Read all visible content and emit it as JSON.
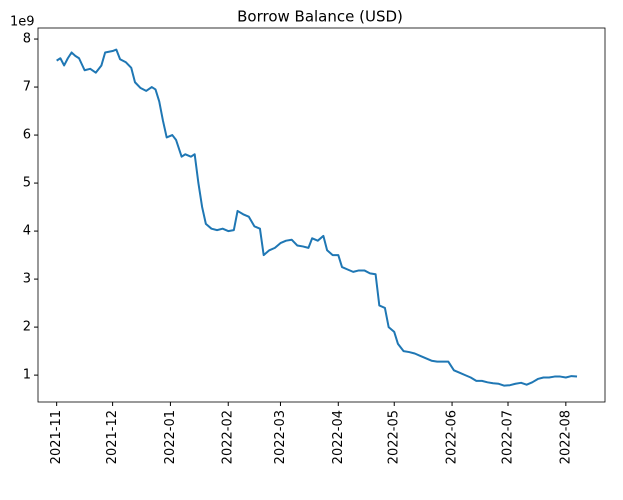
{
  "chart_data": {
    "type": "line",
    "title": "Borrow Balance (USD)",
    "offset_label": "1e9",
    "color": "#1f77b4",
    "x": [
      "2021-11-01",
      "2021-11-03",
      "2021-11-05",
      "2021-11-07",
      "2021-11-09",
      "2021-11-11",
      "2021-11-13",
      "2021-11-16",
      "2021-11-19",
      "2021-11-22",
      "2021-11-25",
      "2021-11-27",
      "2021-12-01",
      "2021-12-03",
      "2021-12-05",
      "2021-12-08",
      "2021-12-11",
      "2021-12-13",
      "2021-12-16",
      "2021-12-19",
      "2021-12-22",
      "2021-12-24",
      "2021-12-26",
      "2021-12-28",
      "2021-12-30",
      "2022-01-02",
      "2022-01-04",
      "2022-01-07",
      "2022-01-09",
      "2022-01-12",
      "2022-01-14",
      "2022-01-16",
      "2022-01-18",
      "2022-01-20",
      "2022-01-23",
      "2022-01-26",
      "2022-01-29",
      "2022-02-01",
      "2022-02-04",
      "2022-02-06",
      "2022-02-09",
      "2022-02-12",
      "2022-02-15",
      "2022-02-18",
      "2022-02-20",
      "2022-02-23",
      "2022-02-26",
      "2022-03-01",
      "2022-03-04",
      "2022-03-07",
      "2022-03-10",
      "2022-03-13",
      "2022-03-16",
      "2022-03-18",
      "2022-03-21",
      "2022-03-24",
      "2022-03-26",
      "2022-03-29",
      "2022-04-01",
      "2022-04-03",
      "2022-04-06",
      "2022-04-09",
      "2022-04-12",
      "2022-04-15",
      "2022-04-18",
      "2022-04-21",
      "2022-04-23",
      "2022-04-26",
      "2022-04-28",
      "2022-05-01",
      "2022-05-03",
      "2022-05-06",
      "2022-05-09",
      "2022-05-12",
      "2022-05-15",
      "2022-05-18",
      "2022-05-21",
      "2022-05-24",
      "2022-05-27",
      "2022-05-30",
      "2022-06-02",
      "2022-06-05",
      "2022-06-08",
      "2022-06-11",
      "2022-06-14",
      "2022-06-17",
      "2022-06-20",
      "2022-06-23",
      "2022-06-26",
      "2022-06-29",
      "2022-07-02",
      "2022-07-05",
      "2022-07-08",
      "2022-07-11",
      "2022-07-14",
      "2022-07-17",
      "2022-07-20",
      "2022-07-23",
      "2022-07-26",
      "2022-07-29",
      "2022-08-01",
      "2022-08-04",
      "2022-08-07"
    ],
    "values": [
      7.55,
      7.6,
      7.45,
      7.6,
      7.72,
      7.65,
      7.6,
      7.35,
      7.38,
      7.3,
      7.45,
      7.72,
      7.75,
      7.78,
      7.58,
      7.52,
      7.4,
      7.1,
      6.98,
      6.92,
      7.0,
      6.95,
      6.7,
      6.3,
      5.95,
      6.0,
      5.9,
      5.55,
      5.6,
      5.55,
      5.6,
      5.0,
      4.5,
      4.15,
      4.05,
      4.02,
      4.05,
      4.0,
      4.02,
      4.42,
      4.35,
      4.3,
      4.1,
      4.05,
      3.5,
      3.6,
      3.65,
      3.75,
      3.8,
      3.82,
      3.7,
      3.68,
      3.65,
      3.85,
      3.8,
      3.9,
      3.6,
      3.5,
      3.5,
      3.25,
      3.2,
      3.15,
      3.18,
      3.18,
      3.12,
      3.1,
      2.45,
      2.4,
      2.0,
      1.9,
      1.65,
      1.5,
      1.48,
      1.45,
      1.4,
      1.35,
      1.3,
      1.28,
      1.28,
      1.28,
      1.1,
      1.05,
      1.0,
      0.95,
      0.88,
      0.88,
      0.85,
      0.83,
      0.82,
      0.78,
      0.79,
      0.82,
      0.84,
      0.8,
      0.85,
      0.92,
      0.95,
      0.95,
      0.97,
      0.97,
      0.95,
      0.98,
      0.97
    ],
    "xlim": [
      "2021-10-22",
      "2022-08-22"
    ],
    "xticks": [
      {
        "value": "2021-11-01",
        "label": "2021-11"
      },
      {
        "value": "2021-12-01",
        "label": "2021-12"
      },
      {
        "value": "2022-01-01",
        "label": "2022-01"
      },
      {
        "value": "2022-02-01",
        "label": "2022-02"
      },
      {
        "value": "2022-03-01",
        "label": "2022-03"
      },
      {
        "value": "2022-04-01",
        "label": "2022-04"
      },
      {
        "value": "2022-05-01",
        "label": "2022-05"
      },
      {
        "value": "2022-06-01",
        "label": "2022-06"
      },
      {
        "value": "2022-07-01",
        "label": "2022-07"
      },
      {
        "value": "2022-08-01",
        "label": "2022-08"
      }
    ],
    "ylim": [
      0.44,
      8.23
    ],
    "yticks": [
      1,
      2,
      3,
      4,
      5,
      6,
      7,
      8
    ]
  }
}
